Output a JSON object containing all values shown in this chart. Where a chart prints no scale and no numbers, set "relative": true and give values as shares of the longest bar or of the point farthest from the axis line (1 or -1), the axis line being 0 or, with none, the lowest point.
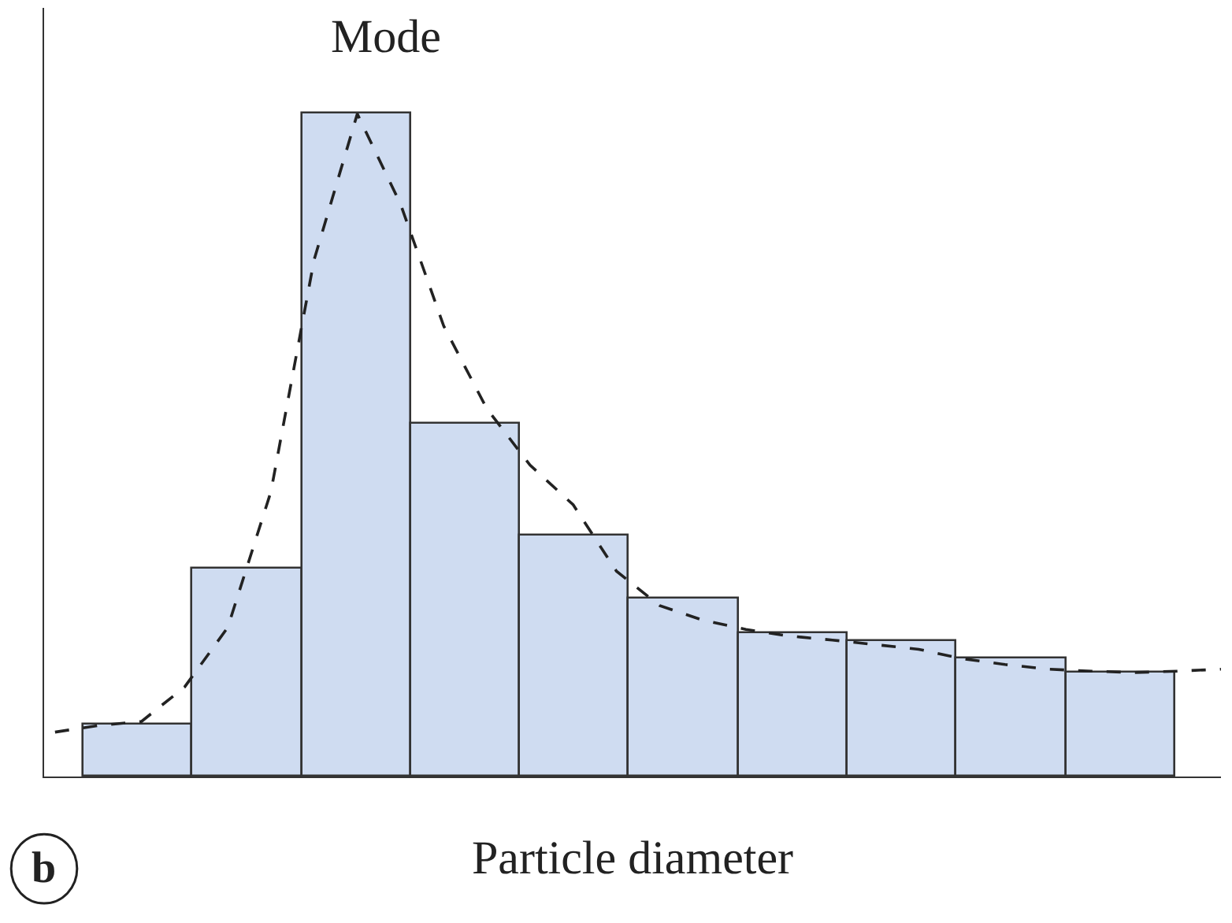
{
  "chart_data": [
    {
      "type": "bar",
      "relative": true,
      "tick_labels": false,
      "xlabel": "Particle diameter",
      "categories": [
        null,
        null,
        null,
        null,
        null,
        null,
        null,
        null,
        null,
        null
      ],
      "values": [
        0.079,
        0.314,
        1,
        0.533,
        0.364,
        0.269,
        0.217,
        0.205,
        0.179,
        0.157
      ],
      "color": "#cfdcf1",
      "annotations": [
        "Mode",
        "b"
      ]
    },
    {
      "type": "line",
      "relative": true,
      "tick_labels": false,
      "color": "#222222",
      "line_style": "dashed",
      "categories": [
        null,
        null,
        null,
        null,
        null,
        null,
        null,
        null,
        null,
        null,
        null,
        null,
        null,
        null,
        null,
        null,
        null,
        null,
        null,
        null,
        null,
        null,
        null,
        null,
        null,
        null,
        null,
        null
      ],
      "values": [
        0.067,
        0.077,
        0.083,
        0.135,
        0.225,
        0.43,
        0.78,
        1,
        0.864,
        0.68,
        0.555,
        0.47,
        0.41,
        0.31,
        0.258,
        0.236,
        0.222,
        0.212,
        0.206,
        0.199,
        0.192,
        0.178,
        0.169,
        0.162,
        0.159,
        0.157,
        0.159,
        0.162
      ]
    }
  ]
}
